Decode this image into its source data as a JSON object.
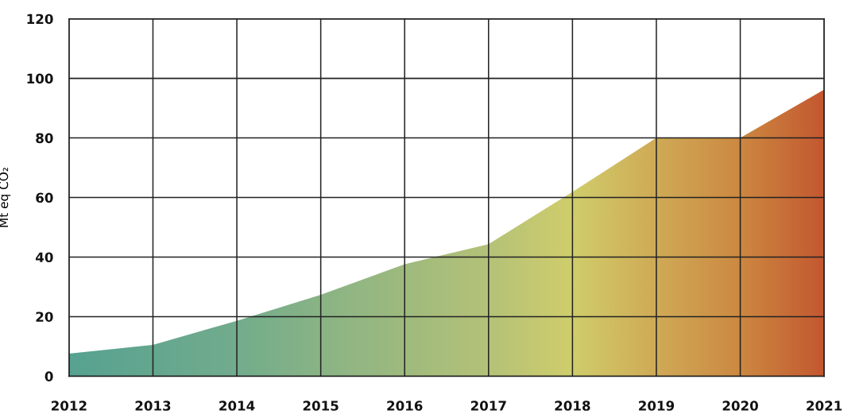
{
  "chart_data": {
    "type": "area",
    "ylabel": "Mt eq CO₂",
    "x": [
      2012,
      2013,
      2014,
      2015,
      2016,
      2017,
      2018,
      2019,
      2020,
      2021
    ],
    "series": [
      {
        "values": [
          7.6,
          10.5,
          18.6,
          27.3,
          37.6,
          44.3,
          61.9,
          80,
          80,
          96.2
        ],
        "colors": [
          "#4a9e94",
          "#5aa392",
          "#6aa990",
          "#84b287",
          "#9cb97f",
          "#b5c278",
          "#d4cf6a",
          "#d4a752",
          "#d0813a",
          "#c64a26"
        ]
      }
    ],
    "xlim": [
      2012,
      2021
    ],
    "ylim": [
      0,
      120
    ],
    "xticks": [
      2012,
      2013,
      2014,
      2015,
      2016,
      2017,
      2018,
      2019,
      2020,
      2021
    ],
    "yticks": [
      0,
      20,
      40,
      60,
      80,
      100,
      120
    ],
    "grid": true
  }
}
